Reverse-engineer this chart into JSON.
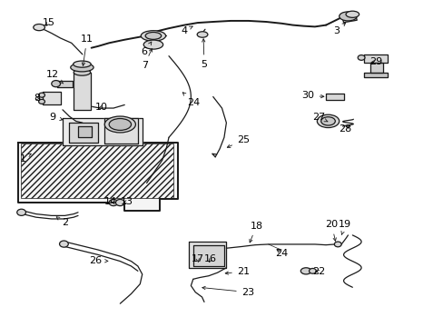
{
  "background_color": "#ffffff",
  "figsize": [
    4.89,
    3.6
  ],
  "dpi": 100,
  "line_color": "#1a1a1a",
  "line_width": 0.9,
  "label_fontsize": 8,
  "text_color": "#000000"
}
